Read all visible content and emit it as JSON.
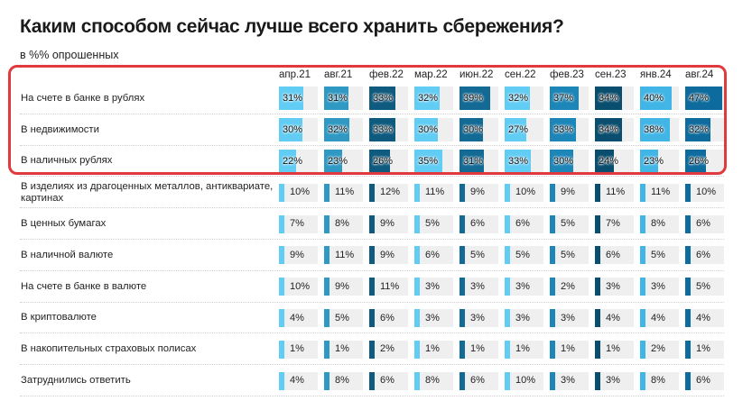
{
  "chart_data": {
    "type": "table",
    "title": "Каким способом сейчас лучше всего хранить сбережения?",
    "subtitle": "в %% опрошенных",
    "columns": [
      "апр.21",
      "авг.21",
      "фев.22",
      "мар.22",
      "июн.22",
      "сен.22",
      "фев.23",
      "сен.23",
      "янв.24",
      "авг.24"
    ],
    "column_colors": [
      "#62cdf4",
      "#2f99c4",
      "#0f5b7f",
      "#62cdf4",
      "#136a95",
      "#62cdf4",
      "#1d86b8",
      "#0a4e6f",
      "#41b6e6",
      "#0d6b9d"
    ],
    "units": "%",
    "rows": [
      {
        "label": "На счете в банке в рублях",
        "values": [
          31,
          31,
          33,
          32,
          39,
          32,
          37,
          34,
          40,
          47
        ],
        "highlight": true
      },
      {
        "label": "В недвижимости",
        "values": [
          30,
          32,
          33,
          30,
          30,
          27,
          33,
          34,
          38,
          32
        ],
        "highlight": true
      },
      {
        "label": "В наличных рублях",
        "values": [
          22,
          23,
          26,
          35,
          31,
          33,
          30,
          24,
          23,
          26
        ],
        "highlight": true
      },
      {
        "label": "В изделиях из драгоценных металлов, антиквариате, картинах",
        "values": [
          10,
          11,
          12,
          11,
          9,
          10,
          9,
          11,
          11,
          10
        ],
        "highlight": false
      },
      {
        "label": "В ценных бумагах",
        "values": [
          7,
          8,
          9,
          5,
          6,
          6,
          5,
          7,
          8,
          6
        ],
        "highlight": false
      },
      {
        "label": "В наличной валюте",
        "values": [
          9,
          11,
          9,
          6,
          5,
          5,
          5,
          6,
          5,
          6
        ],
        "highlight": false
      },
      {
        "label": "На счете в банке в валюте",
        "values": [
          10,
          9,
          11,
          3,
          3,
          3,
          2,
          3,
          3,
          5
        ],
        "highlight": false
      },
      {
        "label": "В криптовалюте",
        "values": [
          4,
          5,
          6,
          3,
          3,
          3,
          3,
          4,
          4,
          4
        ],
        "highlight": false
      },
      {
        "label": "В накопительных страховых полисах",
        "values": [
          1,
          1,
          2,
          1,
          1,
          1,
          1,
          1,
          2,
          1
        ],
        "highlight": false
      },
      {
        "label": "Затруднились ответить",
        "values": [
          4,
          8,
          6,
          8,
          6,
          10,
          3,
          3,
          8,
          6
        ],
        "highlight": false
      }
    ]
  }
}
